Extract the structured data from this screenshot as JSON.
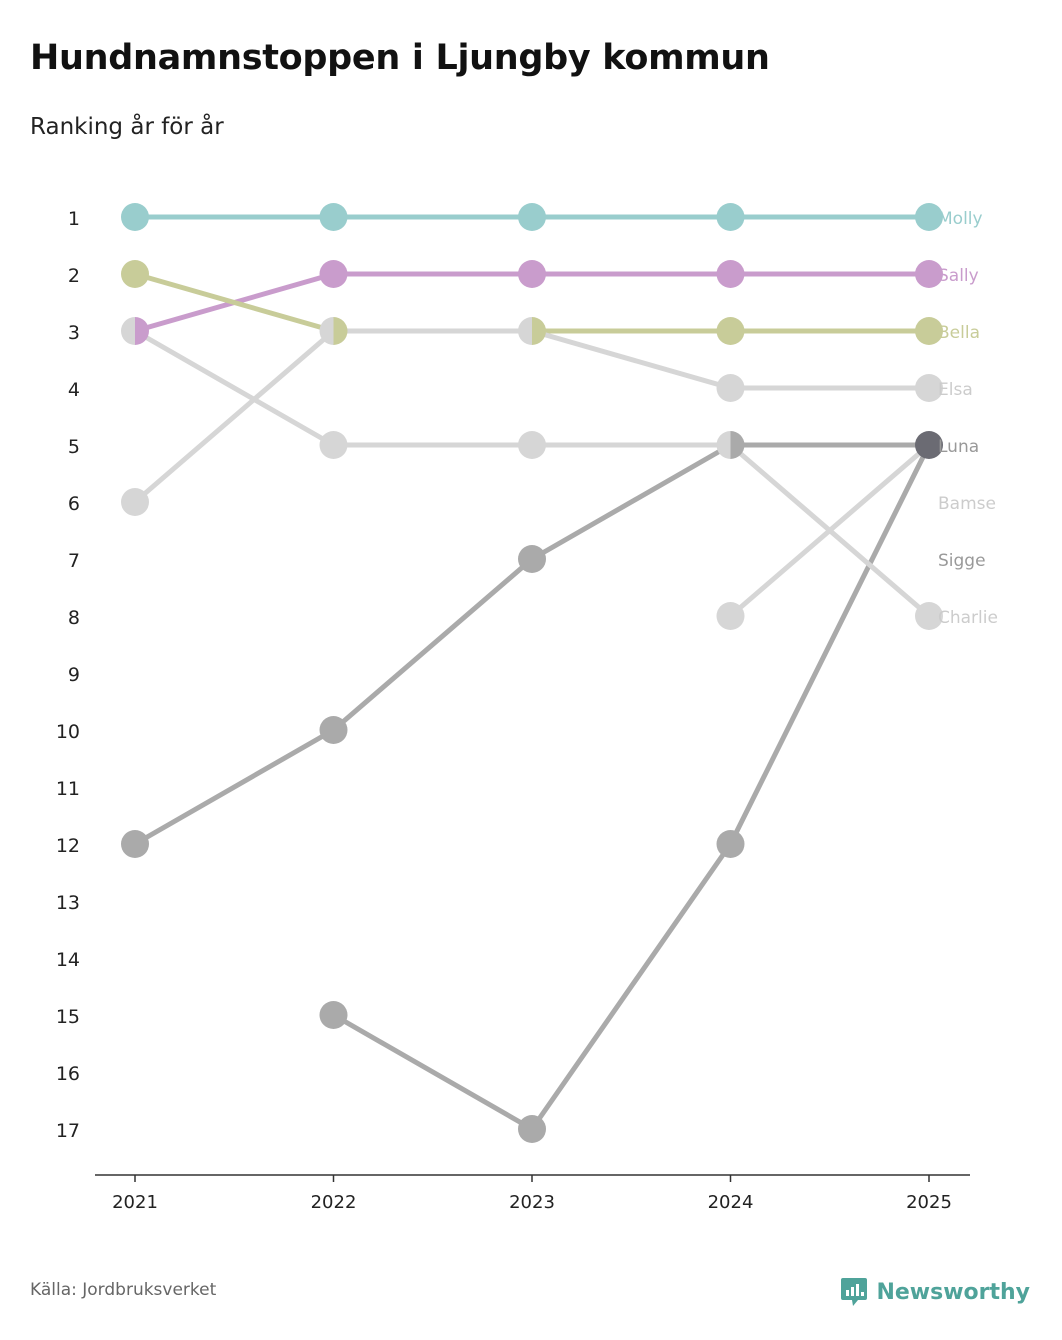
{
  "title": "Hundnamnstoppen i Ljungby kommun",
  "subtitle": "Ranking år för år",
  "source": "Källa: Jordbruksverket",
  "brand": "Newsworthy",
  "brand_icon": "newsworthy-logo-icon",
  "colors": {
    "brand": "#4fa39a",
    "axis": "#333333"
  },
  "chart_data": {
    "type": "line",
    "subtype": "bump",
    "x": [
      "2021",
      "2022",
      "2023",
      "2024",
      "2025"
    ],
    "y_ticks": [
      1,
      2,
      3,
      4,
      5,
      6,
      7,
      8,
      9,
      10,
      11,
      12,
      13,
      14,
      15,
      16,
      17
    ],
    "ylim": [
      1,
      17
    ],
    "y_inverted": true,
    "xlabel": "",
    "ylabel": "",
    "series": [
      {
        "name": "Molly",
        "color": "#99cdcd",
        "label_color": "#99cdcd",
        "values": [
          1,
          1,
          1,
          1,
          1
        ]
      },
      {
        "name": "Sally",
        "color": "#c99ccc",
        "label_color": "#c99ccc",
        "values": [
          3,
          2,
          2,
          2,
          2
        ]
      },
      {
        "name": "Bella",
        "color": "#c8cc99",
        "label_color": "#c8cc99",
        "values": [
          2,
          3,
          3,
          3,
          3
        ]
      },
      {
        "name": "Elsa",
        "color": "#d6d6d6",
        "label_color": "#cccccc",
        "values": [
          6,
          3,
          3,
          4,
          4
        ]
      },
      {
        "name": "Luna",
        "color": "#aaaaaa",
        "label_color": "#999999",
        "values": [
          12,
          10,
          7,
          5,
          5
        ]
      },
      {
        "name": "Bamse",
        "color": "#d6d6d6",
        "label_color": "#cccccc",
        "values": [
          null,
          null,
          null,
          8,
          5
        ]
      },
      {
        "name": "Sigge",
        "color": "#aaaaaa",
        "label_color": "#999999",
        "values": [
          null,
          15,
          17,
          12,
          5
        ]
      },
      {
        "name": "Charlie",
        "color": "#d6d6d6",
        "label_color": "#cccccc",
        "values": [
          3,
          5,
          5,
          5,
          8
        ]
      }
    ],
    "highlight_points": [
      {
        "series": "Sigge",
        "x": "2025",
        "color": "#6b6b73"
      }
    ]
  }
}
